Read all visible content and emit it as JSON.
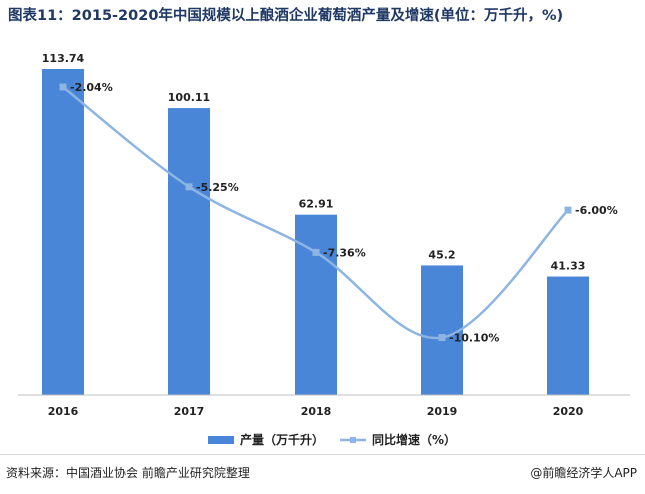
{
  "chart_data": {
    "type": "bar+line",
    "title": "图表11：2015-2020年中国规模以上酿酒企业葡萄酒产量及增速(单位：万千升，%)",
    "categories": [
      "2016",
      "2017",
      "2018",
      "2019",
      "2020"
    ],
    "series": [
      {
        "name": "产量（万千升）",
        "type": "bar",
        "axis": "left",
        "values": [
          113.74,
          100.11,
          62.91,
          45.2,
          41.33
        ],
        "labels": [
          "113.74",
          "100.11",
          "62.91",
          "45.2",
          "41.33"
        ],
        "color": "#4a86d8"
      },
      {
        "name": "同比增速（%）",
        "type": "line",
        "axis": "right",
        "values": [
          -2.04,
          -5.25,
          -7.36,
          -10.1,
          -6.0
        ],
        "labels": [
          "-2.04%",
          "-5.25%",
          "-7.36%",
          "-10.10%",
          "-6.00%"
        ],
        "color": "#8db4e2"
      }
    ],
    "left_axis": {
      "min": 0,
      "max": 113.74
    },
    "right_axis": {
      "min": -10.5,
      "max": -1.3
    },
    "legend_position": "bottom-center",
    "gridlines": false
  },
  "footer": {
    "source": "资料来源：中国酒业协会 前瞻产业研究院整理",
    "credit": "@前瞻经济学人APP"
  }
}
